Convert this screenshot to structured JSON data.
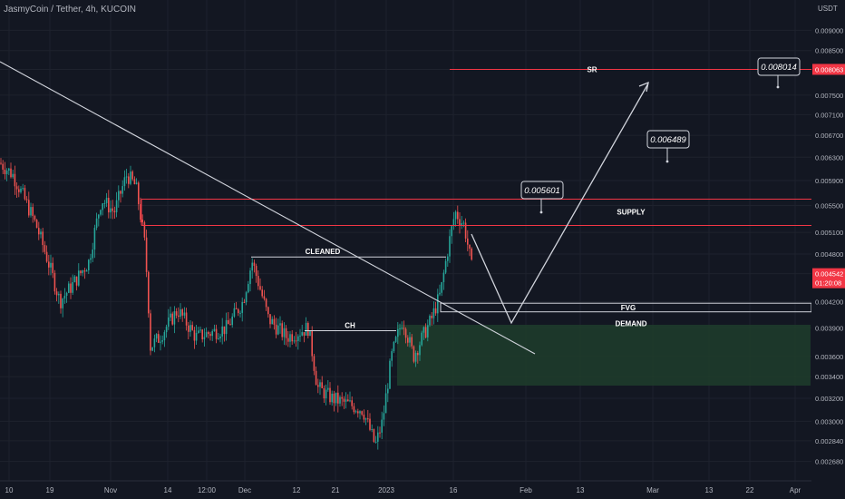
{
  "header": {
    "title": "JasmyCoin / Tether, 4h, KUCOIN"
  },
  "colors": {
    "background": "#131722",
    "grid": "#1e222d",
    "text": "#b2b5be",
    "up": "#26a69a",
    "down": "#ef5350",
    "red_line": "#f23645",
    "white_line": "#d1d4dc",
    "demand_fill": "#1e3d2c",
    "callout_border": "#d1d4dc"
  },
  "chart_data": {
    "type": "candlestick",
    "title": "JasmyCoin / Tether, 4h, KUCOIN",
    "y_axis": {
      "unit_label": "USDT",
      "scale": "log",
      "range": [
        0.00259,
        0.0096
      ],
      "ticks": [
        "0.009000",
        "0.008500",
        "0.008063",
        "0.007500",
        "0.007100",
        "0.006700",
        "0.006300",
        "0.005900",
        "0.005500",
        "0.005100",
        "0.004800",
        "0.004542",
        "0.004200",
        "0.003900",
        "0.003600",
        "0.003400",
        "0.003200",
        "0.003000",
        "0.002840",
        "0.002680"
      ],
      "price_tag": {
        "value": "0.008063",
        "color": "#f23645"
      },
      "current_price_tag": {
        "value": "0.004542",
        "countdown": "01:20:08",
        "color": "#f23645"
      }
    },
    "x_axis": {
      "ticks": [
        "10",
        "19",
        "Nov",
        "14",
        "12:00",
        "Dec",
        "12",
        "21",
        "2023",
        "16",
        "Feb",
        "13",
        "Mar",
        "13",
        "22",
        "Apr"
      ]
    },
    "price_path": [
      [
        0,
        0.0062
      ],
      [
        14,
        0.006
      ],
      [
        40,
        0.0052
      ],
      [
        66,
        0.0042
      ],
      [
        80,
        0.0044
      ],
      [
        98,
        0.0047
      ],
      [
        112,
        0.0056
      ],
      [
        126,
        0.0054
      ],
      [
        140,
        0.006
      ],
      [
        150,
        0.0058
      ],
      [
        160,
        0.0049
      ],
      [
        166,
        0.0037
      ],
      [
        176,
        0.0038
      ],
      [
        196,
        0.0041
      ],
      [
        216,
        0.0038
      ],
      [
        250,
        0.0039
      ],
      [
        268,
        0.0042
      ],
      [
        278,
        0.0047
      ],
      [
        296,
        0.004
      ],
      [
        316,
        0.0038
      ],
      [
        340,
        0.0039
      ],
      [
        350,
        0.0033
      ],
      [
        366,
        0.0032
      ],
      [
        400,
        0.0031
      ],
      [
        414,
        0.0028
      ],
      [
        422,
        0.003
      ],
      [
        432,
        0.0036
      ],
      [
        444,
        0.004
      ],
      [
        456,
        0.0036
      ],
      [
        476,
        0.004
      ],
      [
        486,
        0.0043
      ],
      [
        496,
        0.005
      ],
      [
        502,
        0.0054
      ],
      [
        512,
        0.0052
      ],
      [
        522,
        0.0045
      ]
    ],
    "annotations": {
      "levels": [
        {
          "label": "SR",
          "price": 0.008063
        },
        {
          "label": "SUPPLY",
          "upper": 0.0056,
          "lower": 0.0052
        }
      ],
      "zones": [
        {
          "label": "FVG",
          "upper": 0.00418,
          "lower": 0.00408
        },
        {
          "label": "DEMAND",
          "upper": 0.00408,
          "lower": 0.00343
        }
      ],
      "segment_labels": [
        {
          "label": "CLEANED",
          "price": 0.00476
        },
        {
          "label": "CH",
          "price": 0.00387
        }
      ],
      "callouts": [
        "0.005601",
        "0.006489",
        "0.008014"
      ]
    }
  }
}
